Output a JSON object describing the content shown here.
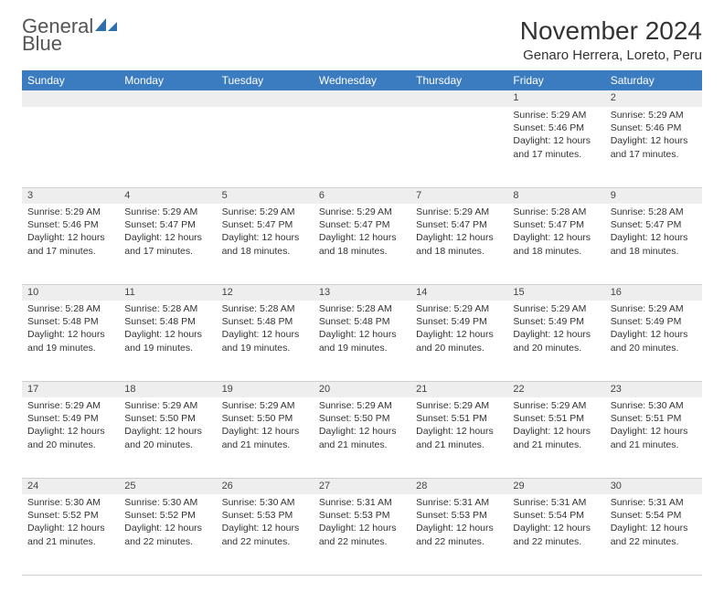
{
  "logo": {
    "text_a": "General",
    "text_b": "Blue"
  },
  "title": "November 2024",
  "location": "Genaro Herrera, Loreto, Peru",
  "colors": {
    "header_bg": "#3b7bbf",
    "header_fg": "#ffffff",
    "daynum_bg": "#eeeeee",
    "text": "#333333",
    "border": "#d0d0d0"
  },
  "day_headers": [
    "Sunday",
    "Monday",
    "Tuesday",
    "Wednesday",
    "Thursday",
    "Friday",
    "Saturday"
  ],
  "weeks": [
    [
      null,
      null,
      null,
      null,
      null,
      {
        "n": "1",
        "sunrise": "5:29 AM",
        "sunset": "5:46 PM",
        "daylight": "12 hours and 17 minutes."
      },
      {
        "n": "2",
        "sunrise": "5:29 AM",
        "sunset": "5:46 PM",
        "daylight": "12 hours and 17 minutes."
      }
    ],
    [
      {
        "n": "3",
        "sunrise": "5:29 AM",
        "sunset": "5:46 PM",
        "daylight": "12 hours and 17 minutes."
      },
      {
        "n": "4",
        "sunrise": "5:29 AM",
        "sunset": "5:47 PM",
        "daylight": "12 hours and 17 minutes."
      },
      {
        "n": "5",
        "sunrise": "5:29 AM",
        "sunset": "5:47 PM",
        "daylight": "12 hours and 18 minutes."
      },
      {
        "n": "6",
        "sunrise": "5:29 AM",
        "sunset": "5:47 PM",
        "daylight": "12 hours and 18 minutes."
      },
      {
        "n": "7",
        "sunrise": "5:29 AM",
        "sunset": "5:47 PM",
        "daylight": "12 hours and 18 minutes."
      },
      {
        "n": "8",
        "sunrise": "5:28 AM",
        "sunset": "5:47 PM",
        "daylight": "12 hours and 18 minutes."
      },
      {
        "n": "9",
        "sunrise": "5:28 AM",
        "sunset": "5:47 PM",
        "daylight": "12 hours and 18 minutes."
      }
    ],
    [
      {
        "n": "10",
        "sunrise": "5:28 AM",
        "sunset": "5:48 PM",
        "daylight": "12 hours and 19 minutes."
      },
      {
        "n": "11",
        "sunrise": "5:28 AM",
        "sunset": "5:48 PM",
        "daylight": "12 hours and 19 minutes."
      },
      {
        "n": "12",
        "sunrise": "5:28 AM",
        "sunset": "5:48 PM",
        "daylight": "12 hours and 19 minutes."
      },
      {
        "n": "13",
        "sunrise": "5:28 AM",
        "sunset": "5:48 PM",
        "daylight": "12 hours and 19 minutes."
      },
      {
        "n": "14",
        "sunrise": "5:29 AM",
        "sunset": "5:49 PM",
        "daylight": "12 hours and 20 minutes."
      },
      {
        "n": "15",
        "sunrise": "5:29 AM",
        "sunset": "5:49 PM",
        "daylight": "12 hours and 20 minutes."
      },
      {
        "n": "16",
        "sunrise": "5:29 AM",
        "sunset": "5:49 PM",
        "daylight": "12 hours and 20 minutes."
      }
    ],
    [
      {
        "n": "17",
        "sunrise": "5:29 AM",
        "sunset": "5:49 PM",
        "daylight": "12 hours and 20 minutes."
      },
      {
        "n": "18",
        "sunrise": "5:29 AM",
        "sunset": "5:50 PM",
        "daylight": "12 hours and 20 minutes."
      },
      {
        "n": "19",
        "sunrise": "5:29 AM",
        "sunset": "5:50 PM",
        "daylight": "12 hours and 21 minutes."
      },
      {
        "n": "20",
        "sunrise": "5:29 AM",
        "sunset": "5:50 PM",
        "daylight": "12 hours and 21 minutes."
      },
      {
        "n": "21",
        "sunrise": "5:29 AM",
        "sunset": "5:51 PM",
        "daylight": "12 hours and 21 minutes."
      },
      {
        "n": "22",
        "sunrise": "5:29 AM",
        "sunset": "5:51 PM",
        "daylight": "12 hours and 21 minutes."
      },
      {
        "n": "23",
        "sunrise": "5:30 AM",
        "sunset": "5:51 PM",
        "daylight": "12 hours and 21 minutes."
      }
    ],
    [
      {
        "n": "24",
        "sunrise": "5:30 AM",
        "sunset": "5:52 PM",
        "daylight": "12 hours and 21 minutes."
      },
      {
        "n": "25",
        "sunrise": "5:30 AM",
        "sunset": "5:52 PM",
        "daylight": "12 hours and 22 minutes."
      },
      {
        "n": "26",
        "sunrise": "5:30 AM",
        "sunset": "5:53 PM",
        "daylight": "12 hours and 22 minutes."
      },
      {
        "n": "27",
        "sunrise": "5:31 AM",
        "sunset": "5:53 PM",
        "daylight": "12 hours and 22 minutes."
      },
      {
        "n": "28",
        "sunrise": "5:31 AM",
        "sunset": "5:53 PM",
        "daylight": "12 hours and 22 minutes."
      },
      {
        "n": "29",
        "sunrise": "5:31 AM",
        "sunset": "5:54 PM",
        "daylight": "12 hours and 22 minutes."
      },
      {
        "n": "30",
        "sunrise": "5:31 AM",
        "sunset": "5:54 PM",
        "daylight": "12 hours and 22 minutes."
      }
    ]
  ],
  "labels": {
    "sunrise": "Sunrise: ",
    "sunset": "Sunset: ",
    "daylight": "Daylight: "
  }
}
